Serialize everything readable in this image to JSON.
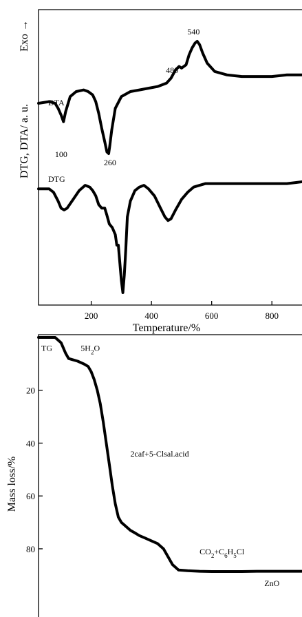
{
  "chart_data": [
    {
      "type": "line",
      "panel": "DTG/DTA",
      "ylabel": "DTG, DTA/ a. u.",
      "ylabel_top": "Exo →",
      "xlabel": "Temperature/%",
      "xlim": [
        25,
        900
      ],
      "xticks": [
        200,
        400,
        600,
        800
      ],
      "series": [
        {
          "name": "DTA",
          "x": [
            25,
            60,
            80,
            90,
            100,
            108,
            115,
            130,
            150,
            175,
            190,
            205,
            215,
            225,
            235,
            245,
            252,
            258,
            262,
            268,
            280,
            300,
            330,
            360,
            390,
            420,
            450,
            465,
            480,
            492,
            500,
            515,
            525,
            535,
            545,
            552,
            560,
            570,
            585,
            610,
            650,
            700,
            750,
            800,
            850,
            900
          ],
          "y": [
            0.63,
            0.64,
            0.63,
            0.6,
            0.56,
            0.52,
            0.58,
            0.67,
            0.7,
            0.71,
            0.7,
            0.68,
            0.64,
            0.57,
            0.48,
            0.4,
            0.34,
            0.33,
            0.38,
            0.47,
            0.6,
            0.67,
            0.7,
            0.71,
            0.72,
            0.73,
            0.75,
            0.78,
            0.83,
            0.85,
            0.84,
            0.86,
            0.92,
            0.96,
            0.99,
            1.0,
            0.98,
            0.93,
            0.87,
            0.82,
            0.8,
            0.79,
            0.79,
            0.79,
            0.8,
            0.8
          ],
          "annotations": [
            {
              "x": 100,
              "label": "100"
            },
            {
              "x": 260,
              "label": "260"
            },
            {
              "x": 480,
              "label": "480"
            },
            {
              "x": 540,
              "label": "540"
            }
          ]
        },
        {
          "name": "DTG",
          "x": [
            25,
            60,
            75,
            90,
            100,
            110,
            120,
            140,
            160,
            180,
            195,
            205,
            215,
            225,
            235,
            245,
            252,
            260,
            270,
            280,
            285,
            290,
            295,
            300,
            305,
            310,
            315,
            320,
            330,
            345,
            360,
            375,
            390,
            410,
            430,
            445,
            455,
            465,
            480,
            500,
            520,
            540,
            560,
            580,
            600,
            650,
            700,
            750,
            800,
            850,
            900
          ],
          "y": [
            0.42,
            0.42,
            0.4,
            0.35,
            0.31,
            0.3,
            0.31,
            0.36,
            0.41,
            0.44,
            0.43,
            0.41,
            0.38,
            0.33,
            0.31,
            0.31,
            0.27,
            0.22,
            0.2,
            0.16,
            0.1,
            0.1,
            0.0,
            -0.1,
            -0.17,
            -0.07,
            0.08,
            0.26,
            0.35,
            0.41,
            0.43,
            0.44,
            0.42,
            0.38,
            0.31,
            0.26,
            0.24,
            0.25,
            0.3,
            0.36,
            0.4,
            0.43,
            0.44,
            0.45,
            0.45,
            0.45,
            0.45,
            0.45,
            0.45,
            0.45,
            0.46
          ]
        }
      ]
    },
    {
      "type": "line",
      "panel": "TG",
      "ylabel": "Mass loss/%",
      "ylim": [
        0,
        92
      ],
      "yticks": [
        20,
        40,
        60,
        80
      ],
      "series": [
        {
          "name": "TG",
          "x": [
            25,
            80,
            100,
            115,
            125,
            140,
            155,
            175,
            190,
            200,
            210,
            220,
            230,
            240,
            250,
            260,
            270,
            280,
            290,
            300,
            310,
            320,
            330,
            345,
            360,
            380,
            400,
            420,
            440,
            460,
            470,
            490,
            520,
            560,
            600,
            650,
            700,
            750,
            800,
            850,
            900
          ],
          "y": [
            0,
            0,
            2,
            6,
            8,
            8.5,
            9,
            10,
            11,
            13,
            16,
            20,
            25,
            32,
            40,
            48,
            56,
            63,
            68,
            70,
            71,
            72,
            73,
            74,
            75,
            76,
            77,
            78,
            80,
            84,
            86,
            88,
            88.3,
            88.5,
            88.6,
            88.6,
            88.6,
            88.5,
            88.5,
            88.5,
            88.5
          ]
        }
      ],
      "annotations": [
        {
          "text": "TG",
          "x": 40,
          "y": 2
        },
        {
          "text": "5H2O",
          "x": 165,
          "y": 2
        },
        {
          "text": "2caf+5-Clsal.acid",
          "x": 330,
          "y": 42
        },
        {
          "text": "CO2+C6H5Cl",
          "x": 560,
          "y": 79
        },
        {
          "text": "ZnO",
          "x": 775,
          "y": 91
        }
      ]
    }
  ]
}
